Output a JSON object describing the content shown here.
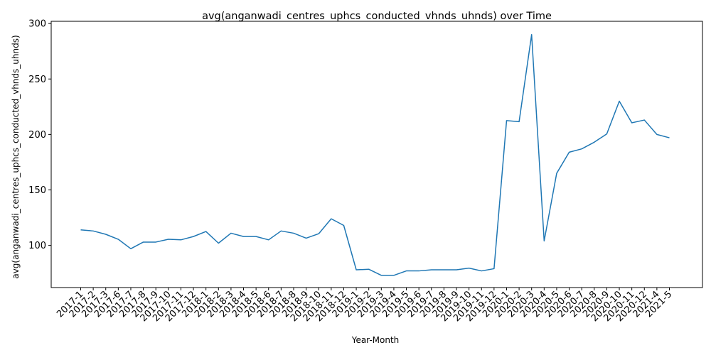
{
  "chart_data": {
    "type": "line",
    "title": "avg(anganwadi_centres_uphcs_conducted_vhnds_uhnds) over Time",
    "xlabel": "Year-Month",
    "ylabel": "avg(anganwadi_centres_uphcs_conducted_vhnds_uhnds)",
    "ylim": [
      62,
      302
    ],
    "yticks": [
      100,
      150,
      200,
      250,
      300
    ],
    "grid": false,
    "legend": "none",
    "line_color": "#1f77b4",
    "categories": [
      "2017-1",
      "2017-2",
      "2017-3",
      "2017-6",
      "2017-7",
      "2017-8",
      "2017-9",
      "2017-10",
      "2017-11",
      "2017-12",
      "2018-1",
      "2018-2",
      "2018-3",
      "2018-4",
      "2018-5",
      "2018-6",
      "2018-7",
      "2018-8",
      "2018-9",
      "2018-10",
      "2018-11",
      "2018-12",
      "2019-1",
      "2019-2",
      "2019-3",
      "2019-4",
      "2019-5",
      "2019-6",
      "2019-7",
      "2019-8",
      "2019-9",
      "2019-10",
      "2019-11",
      "2019-12",
      "2020-1",
      "2020-2",
      "2020-3",
      "2020-4",
      "2020-5",
      "2020-6",
      "2020-7",
      "2020-8",
      "2020-9",
      "2020-10",
      "2020-11",
      "2020-12",
      "2021-4",
      "2021-5"
    ],
    "series": [
      {
        "values": [
          114,
          113,
          110,
          105.5,
          97,
          103,
          103,
          105.5,
          105,
          108,
          112.5,
          102,
          111,
          108,
          108,
          105,
          113,
          111,
          106.5,
          110.5,
          124,
          118,
          78,
          78.5,
          73,
          73,
          77,
          77,
          78,
          78,
          78,
          79.5,
          77,
          79,
          212.5,
          211.5,
          290,
          104,
          165,
          184,
          187,
          193,
          200.5,
          230,
          210.5,
          213,
          200,
          197
        ]
      }
    ]
  }
}
